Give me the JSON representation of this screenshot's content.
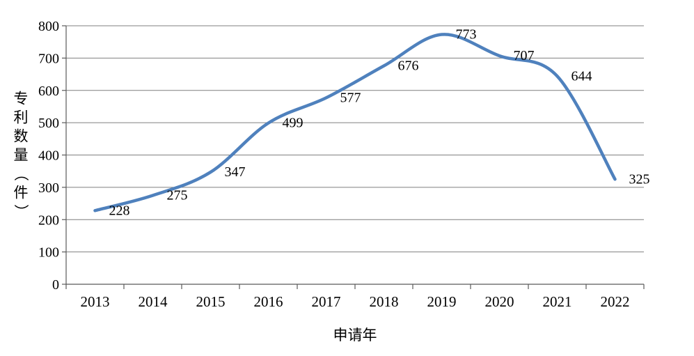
{
  "page": {
    "background": "#ffffff"
  },
  "chart_data": {
    "type": "line",
    "title": "",
    "categories": [
      "2013",
      "2014",
      "2015",
      "2016",
      "2017",
      "2018",
      "2019",
      "2020",
      "2021",
      "2022"
    ],
    "series": [
      {
        "name": "专利数量",
        "values": [
          228,
          275,
          347,
          499,
          577,
          676,
          773,
          707,
          644,
          325
        ],
        "data_labels": [
          "228",
          "275",
          "347",
          "499",
          "577",
          "676",
          "773",
          "707",
          "644",
          "325"
        ]
      }
    ],
    "xlabel": "申请年",
    "ylabel": "专利数量（件）",
    "ylim": [
      0,
      800
    ],
    "ytick_step": 100,
    "ytick_labels": [
      "0",
      "100",
      "200",
      "300",
      "400",
      "500",
      "600",
      "700",
      "800"
    ],
    "grid": true,
    "smooth": true,
    "legend_position": "none",
    "colors": {
      "line": "#4F81BD",
      "gridline": "#7f7f7f",
      "axis": "#595959",
      "text": "#000000"
    }
  }
}
